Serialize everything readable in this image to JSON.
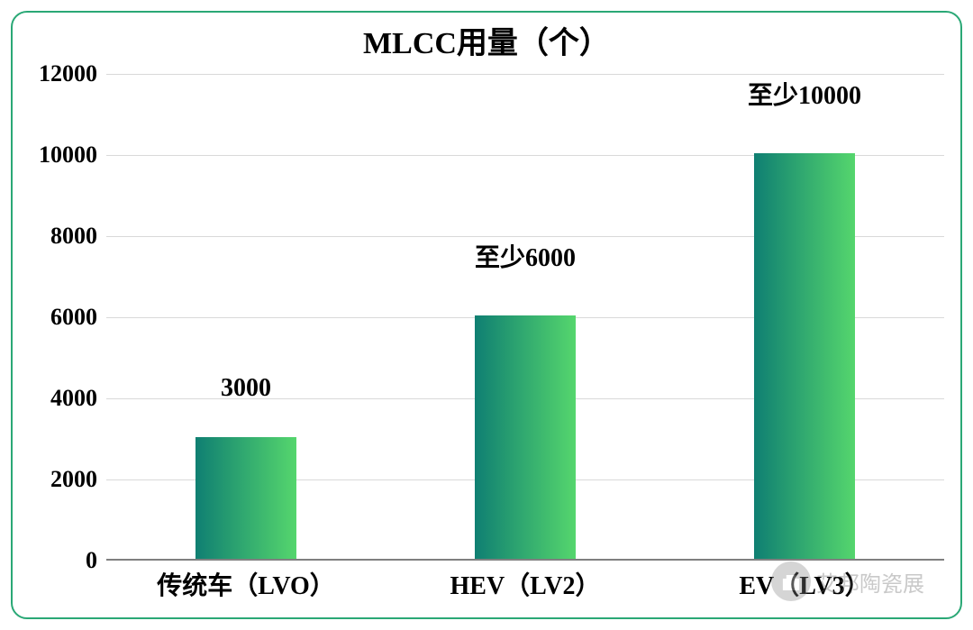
{
  "chart": {
    "type": "bar",
    "title": "MLCC用量（个）",
    "title_fontsize": 34,
    "title_color": "#000000",
    "card_border_color": "#2aa876",
    "background_color": "#ffffff",
    "grid_color": "#d9d9d9",
    "axis_color": "#808080",
    "y": {
      "min": 0,
      "max": 12000,
      "step": 2000,
      "ticks": [
        0,
        2000,
        4000,
        6000,
        8000,
        10000,
        12000
      ],
      "fontsize": 26,
      "color": "#000000"
    },
    "x": {
      "categories": [
        "传统车（LVO）",
        "HEV（LV2）",
        "EV（LV3）"
      ],
      "fontsize": 28,
      "color": "#000000"
    },
    "bars": {
      "values": [
        3000,
        6000,
        10000
      ],
      "labels": [
        "3000",
        "至少6000",
        "至少10000"
      ],
      "label_fontsize": 28,
      "label_color": "#000000",
      "width_fraction": 0.36,
      "gradient_from": "#0f7f72",
      "gradient_to": "#55d66d"
    },
    "watermark": {
      "text": "艾邦陶瓷展",
      "icon": "wechat-icon"
    }
  }
}
